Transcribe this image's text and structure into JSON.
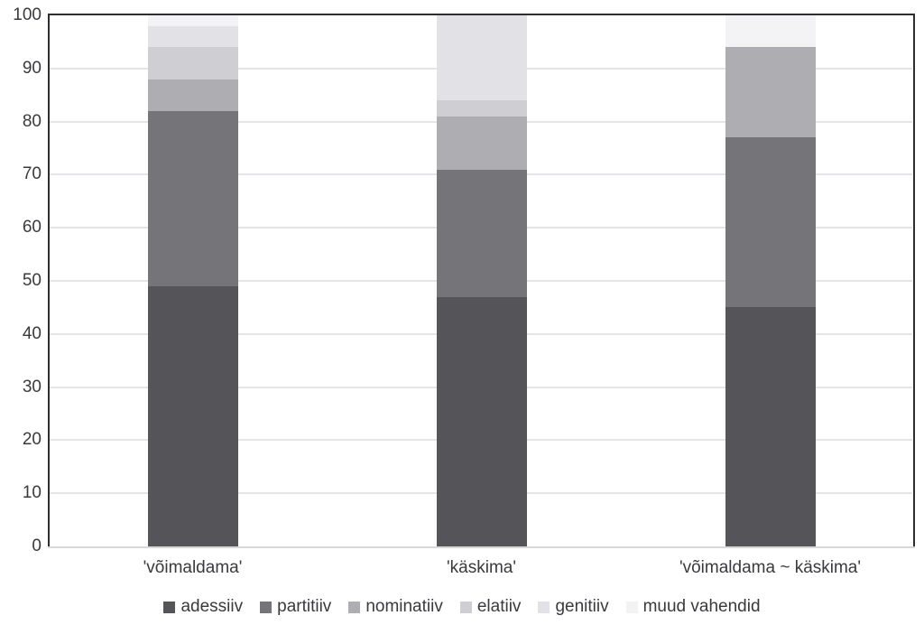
{
  "chart_data": {
    "type": "bar",
    "stacked": true,
    "title": "",
    "xlabel": "",
    "ylabel": "",
    "categories": [
      "'võimaldama'",
      "'käskima'",
      "'võimaldama ~ käskima'"
    ],
    "series": [
      {
        "name": "adessiiv",
        "color": "#555458",
        "values": [
          49,
          47,
          45
        ]
      },
      {
        "name": "partitiiv",
        "color": "#757478",
        "values": [
          33,
          24,
          32
        ]
      },
      {
        "name": "nominatiiv",
        "color": "#aeadb1",
        "values": [
          6,
          10,
          17
        ]
      },
      {
        "name": "elatiiv",
        "color": "#cfced2",
        "values": [
          6,
          3,
          0
        ]
      },
      {
        "name": "genitiiv",
        "color": "#e2e1e5",
        "values": [
          4,
          16,
          0
        ]
      },
      {
        "name": "muud vahendid",
        "color": "#f3f2f5",
        "values": [
          2,
          0,
          6
        ]
      }
    ],
    "ylim": [
      0,
      100
    ],
    "yticks": [
      0,
      10,
      20,
      30,
      40,
      50,
      60,
      70,
      80,
      90,
      100
    ],
    "grid": true,
    "legend_position": "bottom",
    "colors": {
      "axis_border": "#2e2d31",
      "gridline": "#e5e4e8",
      "baseline": "#d9d9d9",
      "text": "#3a393d"
    }
  }
}
